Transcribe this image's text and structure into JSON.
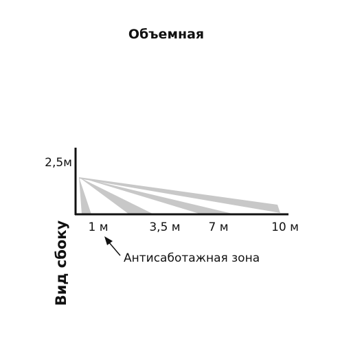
{
  "header": {
    "title": "Объемная"
  },
  "diagram": {
    "height_label": "2,5м",
    "distances": [
      "1 м",
      "3,5 м",
      "7 м",
      "10 м"
    ],
    "annotation": "Антисаботажная зона",
    "side_label": "Вид сбоку"
  }
}
